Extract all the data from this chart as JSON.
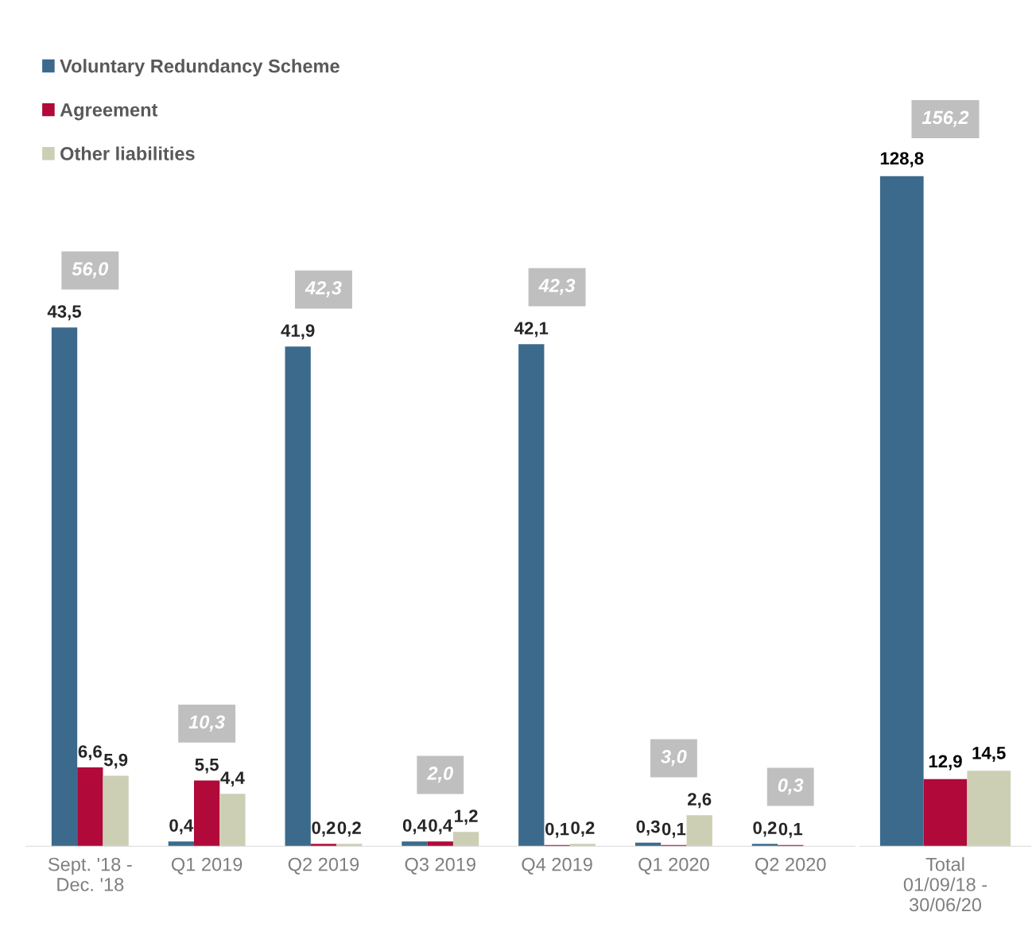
{
  "chart_data": [
    {
      "type": "bar",
      "categories": [
        "Sept. '18 -\nDec. '18",
        "Q1 2019",
        "Q2 2019",
        "Q3 2019",
        "Q4 2019",
        "Q1 2020",
        "Q2 2020"
      ],
      "series": [
        {
          "name": "Voluntary Redundancy Scheme",
          "color": "#3b6a8c",
          "values": [
            43.5,
            0.4,
            41.9,
            0.4,
            42.1,
            0.3,
            0.2
          ],
          "value_labels": [
            "43,5",
            "0,4",
            "41,9",
            "0,4",
            "42,1",
            "0,3",
            "0,2"
          ]
        },
        {
          "name": "Agreement",
          "color": "#b0093a",
          "values": [
            6.6,
            5.5,
            0.2,
            0.4,
            0.1,
            0.1,
            0.1
          ],
          "value_labels": [
            "6,6",
            "5,5",
            "0,2",
            "0,4",
            "0,1",
            "0,1",
            "0,1"
          ]
        },
        {
          "name": "Other liabilities",
          "color": "#cccfb4",
          "values": [
            5.9,
            4.4,
            0.2,
            1.2,
            0.2,
            2.6,
            0
          ],
          "value_labels": [
            "5,9",
            "4,4",
            "0,2",
            "1,2",
            "0,2",
            "2,6",
            null
          ]
        }
      ],
      "totals": [
        "56,0",
        "10,3",
        "42,3",
        "2,0",
        "42,3",
        "3,0",
        "0,3"
      ],
      "legend": "top left",
      "tick_labels": "x",
      "grid": false
    },
    {
      "type": "bar",
      "categories": [
        "Total\n01/09/18 -\n30/06/20"
      ],
      "series": [
        {
          "color": "#3b6a8c",
          "values": [
            128.8
          ],
          "value_labels": [
            "128,8"
          ]
        },
        {
          "color": "#b0093a",
          "values": [
            12.9
          ],
          "value_labels": [
            "12,9"
          ]
        },
        {
          "color": "#cccfb4",
          "values": [
            14.5
          ],
          "value_labels": [
            "14,5"
          ]
        }
      ],
      "totals": [
        "156,2"
      ],
      "legend": false,
      "tick_labels": "x",
      "grid": false
    }
  ]
}
